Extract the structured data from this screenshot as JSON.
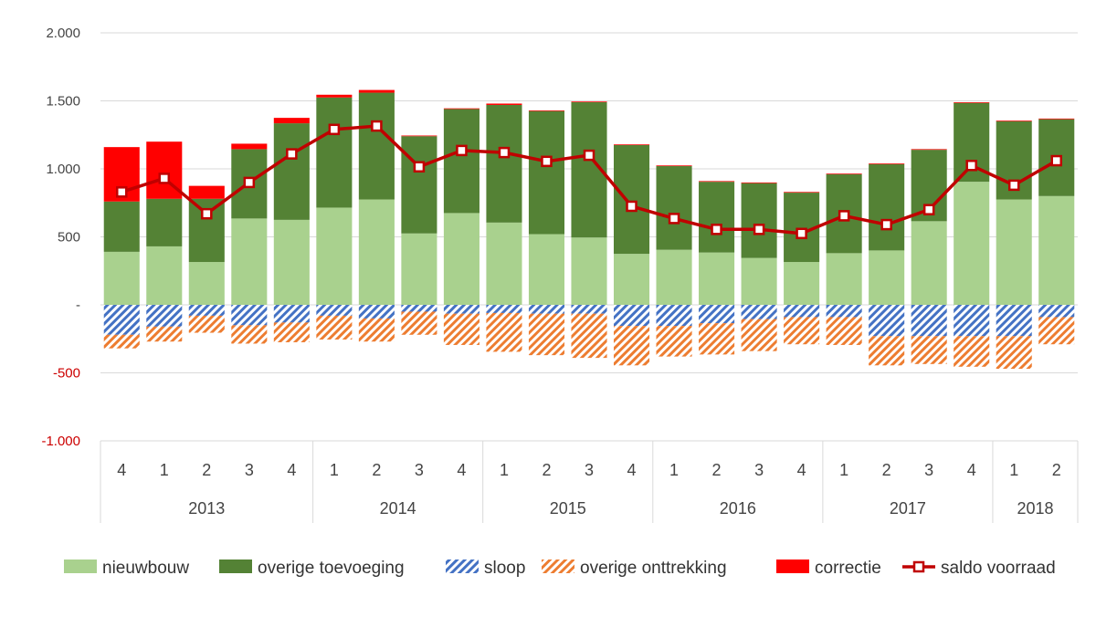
{
  "chart_data": {
    "type": "bar",
    "stacked": true,
    "categories": [
      "4",
      "1",
      "2",
      "3",
      "4",
      "1",
      "2",
      "3",
      "4",
      "1",
      "2",
      "3",
      "4",
      "1",
      "2",
      "3",
      "4",
      "1",
      "2",
      "3",
      "4",
      "1",
      "2"
    ],
    "years": [
      {
        "label": "2013",
        "quarters": 5
      },
      {
        "label": "2014",
        "quarters": 4
      },
      {
        "label": "2015",
        "quarters": 4
      },
      {
        "label": "2016",
        "quarters": 4
      },
      {
        "label": "2017",
        "quarters": 4
      },
      {
        "label": "2018",
        "quarters": 2
      }
    ],
    "ylim": [
      -1000,
      2000
    ],
    "yticks": [
      {
        "value": 2000,
        "label": "2.000"
      },
      {
        "value": 1500,
        "label": "1.500"
      },
      {
        "value": 1000,
        "label": "1.000"
      },
      {
        "value": 500,
        "label": "500"
      },
      {
        "value": 0,
        "label": "-"
      },
      {
        "value": -500,
        "label": "-500"
      },
      {
        "value": -1000,
        "label": "-1.000"
      }
    ],
    "grid": true,
    "legend_position": "bottom",
    "series": [
      {
        "name": "nieuwbouw",
        "kind": "bar",
        "color": "#a9d18e",
        "values": [
          390,
          430,
          315,
          635,
          625,
          715,
          775,
          525,
          675,
          605,
          520,
          495,
          375,
          405,
          385,
          345,
          315,
          380,
          400,
          615,
          905,
          775,
          800
        ]
      },
      {
        "name": "overige toevoeging",
        "kind": "bar",
        "color": "#548235",
        "values": [
          370,
          350,
          465,
          510,
          710,
          810,
          785,
          715,
          765,
          865,
          905,
          995,
          800,
          615,
          520,
          550,
          510,
          580,
          635,
          525,
          580,
          575,
          565
        ]
      },
      {
        "name": "sloop",
        "kind": "bar",
        "color": "#4472c4",
        "pattern": "hatch",
        "values": [
          -220,
          -160,
          -80,
          -150,
          -130,
          -80,
          -100,
          -50,
          -65,
          -60,
          -65,
          -65,
          -155,
          -155,
          -135,
          -105,
          -90,
          -90,
          -230,
          -230,
          -230,
          -230,
          -90
        ]
      },
      {
        "name": "overige onttrekking",
        "kind": "bar",
        "color": "#ed7d31",
        "pattern": "hatch",
        "values": [
          -100,
          -110,
          -125,
          -135,
          -145,
          -175,
          -170,
          -170,
          -230,
          -285,
          -305,
          -325,
          -290,
          -225,
          -230,
          -235,
          -200,
          -205,
          -215,
          -205,
          -225,
          -240,
          -200
        ]
      },
      {
        "name": "correctie",
        "kind": "bar",
        "color": "#ff0000",
        "values": [
          400,
          420,
          95,
          40,
          40,
          20,
          20,
          5,
          5,
          10,
          5,
          5,
          5,
          5,
          5,
          5,
          5,
          5,
          5,
          5,
          5,
          5,
          5
        ]
      },
      {
        "name": "saldo voorraad",
        "kind": "line",
        "color": "#c00000",
        "values": [
          830,
          930,
          670,
          900,
          1110,
          1290,
          1315,
          1015,
          1135,
          1120,
          1055,
          1100,
          725,
          635,
          555,
          555,
          525,
          655,
          590,
          700,
          1025,
          880,
          1060
        ]
      }
    ]
  }
}
